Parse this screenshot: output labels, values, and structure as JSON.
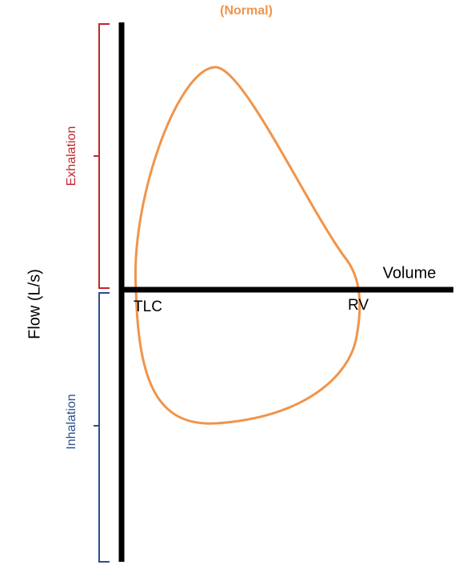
{
  "title": "(Normal)",
  "axes": {
    "x_label": "Volume",
    "y_label": "Flow (L/s)"
  },
  "points": {
    "start": "TLC",
    "end": "RV"
  },
  "phases": {
    "upper": "Exhalation",
    "lower": "Inhalation"
  }
}
